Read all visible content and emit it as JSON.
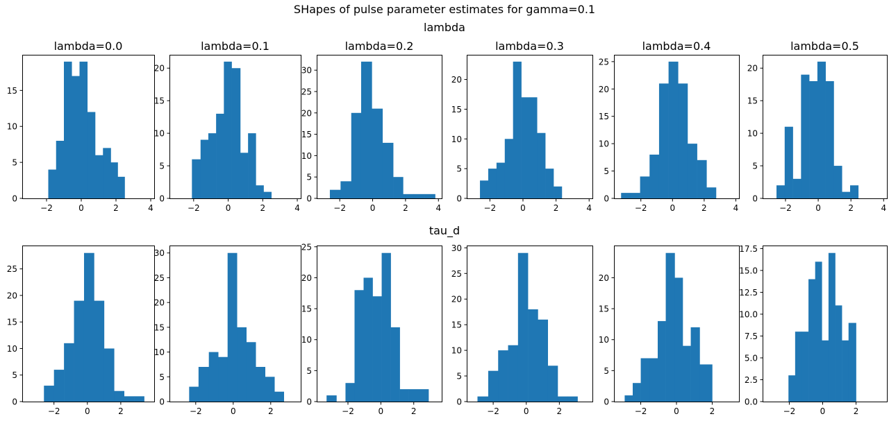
{
  "figure": {
    "suptitle": "SHapes of pulse parameter estimates for gamma=0.1",
    "row_titles": [
      "lambda",
      "tau_d"
    ],
    "bar_color": "#1f77b4"
  },
  "chart_data": [
    {
      "type": "bar",
      "row": 0,
      "col": 0,
      "title": "lambda=0.0",
      "bin_edges": [
        -1.9,
        -1.45,
        -1.0,
        -0.55,
        -0.1,
        0.35,
        0.8,
        1.25,
        1.7,
        2.1,
        2.5
      ],
      "values": [
        4,
        8,
        19,
        17,
        19,
        12,
        6,
        7,
        5,
        3
      ],
      "xlim": [
        -3.4,
        4.2
      ],
      "ylim": [
        0,
        19.95
      ],
      "xticks": [
        -2,
        0,
        2,
        4
      ],
      "xtick_labels": [
        "−2",
        "0",
        "2",
        "4"
      ],
      "yticks": [
        0,
        5,
        10,
        15
      ],
      "ytick_labels": [
        "0",
        "5",
        "10",
        "15"
      ]
    },
    {
      "type": "bar",
      "row": 0,
      "col": 1,
      "title": "lambda=0.1",
      "bin_edges": [
        -2.1,
        -1.6,
        -1.15,
        -0.7,
        -0.25,
        0.2,
        0.7,
        1.15,
        1.6,
        2.05,
        2.5
      ],
      "values": [
        6,
        9,
        10,
        13,
        21,
        20,
        7,
        10,
        2,
        1
      ],
      "xlim": [
        -3.4,
        4.2
      ],
      "ylim": [
        0,
        22.05
      ],
      "xticks": [
        -2,
        0,
        2,
        4
      ],
      "xtick_labels": [
        "−2",
        "0",
        "2",
        "4"
      ],
      "yticks": [
        0,
        5,
        10,
        15,
        20
      ],
      "ytick_labels": [
        "0",
        "5",
        "10",
        "15",
        "20"
      ]
    },
    {
      "type": "bar",
      "row": 0,
      "col": 2,
      "title": "lambda=0.2",
      "bin_edges": [
        -2.6,
        -1.95,
        -1.3,
        -0.7,
        -0.05,
        0.6,
        1.25,
        1.85,
        2.5,
        3.15,
        3.8
      ],
      "values": [
        2,
        4,
        20,
        32,
        21,
        13,
        5,
        1,
        1,
        1
      ],
      "xlim": [
        -3.4,
        4.2
      ],
      "ylim": [
        0,
        33.6
      ],
      "xticks": [
        -2,
        0,
        2,
        4
      ],
      "xtick_labels": [
        "−2",
        "0",
        "2",
        "4"
      ],
      "yticks": [
        0,
        5,
        10,
        15,
        20,
        25,
        30
      ],
      "ytick_labels": [
        "0",
        "5",
        "10",
        "15",
        "20",
        "25",
        "30"
      ]
    },
    {
      "type": "bar",
      "row": 0,
      "col": 3,
      "title": "lambda=0.3",
      "bin_edges": [
        -2.6,
        -2.1,
        -1.6,
        -1.1,
        -0.6,
        -0.1,
        0.4,
        0.85,
        1.35,
        1.85,
        2.35
      ],
      "values": [
        3,
        5,
        6,
        10,
        23,
        17,
        17,
        11,
        5,
        2
      ],
      "xlim": [
        -3.4,
        4.2
      ],
      "ylim": [
        0,
        24.15
      ],
      "xticks": [
        -2,
        0,
        2,
        4
      ],
      "xtick_labels": [
        "−2",
        "0",
        "2",
        "4"
      ],
      "yticks": [
        0,
        5,
        10,
        15,
        20
      ],
      "ytick_labels": [
        "0",
        "5",
        "10",
        "15",
        "20"
      ]
    },
    {
      "type": "bar",
      "row": 0,
      "col": 4,
      "title": "lambda=0.4",
      "bin_edges": [
        -3.25,
        -2.65,
        -2.05,
        -1.45,
        -0.85,
        -0.25,
        0.35,
        0.95,
        1.55,
        2.15,
        2.75
      ],
      "values": [
        1,
        1,
        4,
        8,
        21,
        25,
        21,
        10,
        7,
        2
      ],
      "xlim": [
        -3.7,
        4.2
      ],
      "ylim": [
        0,
        26.25
      ],
      "xticks": [
        -2,
        0,
        2,
        4
      ],
      "xtick_labels": [
        "−2",
        "0",
        "2",
        "4"
      ],
      "yticks": [
        0,
        5,
        10,
        15,
        20,
        25
      ],
      "ytick_labels": [
        "0",
        "5",
        "10",
        "15",
        "20",
        "25"
      ]
    },
    {
      "type": "bar",
      "row": 0,
      "col": 5,
      "title": "lambda=0.5",
      "bin_edges": [
        -2.55,
        -2.05,
        -1.55,
        -1.05,
        -0.55,
        -0.05,
        0.45,
        0.95,
        1.45,
        1.95,
        2.45
      ],
      "values": [
        2,
        11,
        3,
        19,
        18,
        21,
        18,
        5,
        1,
        2
      ],
      "xlim": [
        -3.4,
        4.2
      ],
      "ylim": [
        0,
        22.05
      ],
      "xticks": [
        -2,
        0,
        2,
        4
      ],
      "xtick_labels": [
        "−2",
        "0",
        "2",
        "4"
      ],
      "yticks": [
        0,
        5,
        10,
        15,
        20
      ],
      "ytick_labels": [
        "0",
        "5",
        "10",
        "15",
        "20"
      ]
    },
    {
      "type": "bar",
      "row": 1,
      "col": 0,
      "title": "",
      "bin_edges": [
        -2.6,
        -2.0,
        -1.4,
        -0.8,
        -0.2,
        0.4,
        1.0,
        1.6,
        2.2,
        2.8,
        3.4
      ],
      "values": [
        3,
        6,
        11,
        19,
        28,
        19,
        10,
        2,
        1,
        1
      ],
      "xlim": [
        -3.9,
        4.0
      ],
      "ylim": [
        0,
        29.4
      ],
      "xticks": [
        -2,
        0,
        2
      ],
      "xtick_labels": [
        "−2",
        "0",
        "2"
      ],
      "yticks": [
        0,
        5,
        10,
        15,
        20,
        25
      ],
      "ytick_labels": [
        "0",
        "5",
        "10",
        "15",
        "20",
        "25"
      ]
    },
    {
      "type": "bar",
      "row": 1,
      "col": 1,
      "title": "",
      "bin_edges": [
        -2.35,
        -1.85,
        -1.3,
        -0.8,
        -0.3,
        0.2,
        0.7,
        1.2,
        1.7,
        2.2,
        2.7
      ],
      "values": [
        3,
        7,
        10,
        9,
        30,
        15,
        12,
        7,
        5,
        2
      ],
      "xlim": [
        -3.4,
        3.6
      ],
      "ylim": [
        0,
        31.5
      ],
      "xticks": [
        -2,
        0,
        2
      ],
      "xtick_labels": [
        "−2",
        "0",
        "2"
      ],
      "yticks": [
        0,
        5,
        10,
        15,
        20,
        25,
        30
      ],
      "ytick_labels": [
        "0",
        "5",
        "10",
        "15",
        "20",
        "25",
        "30"
      ]
    },
    {
      "type": "bar",
      "row": 1,
      "col": 2,
      "title": "",
      "bin_edges": [
        -3.3,
        -2.7,
        -2.15,
        -1.6,
        -1.05,
        -0.5,
        0.05,
        0.6,
        1.15,
        1.7,
        2.9
      ],
      "values": [
        1,
        0,
        3,
        18,
        20,
        17,
        24,
        12,
        2,
        2
      ],
      "xlim": [
        -3.9,
        3.7
      ],
      "ylim": [
        0,
        25.2
      ],
      "xticks": [
        -2,
        0,
        2
      ],
      "xtick_labels": [
        "−2",
        "0",
        "2"
      ],
      "yticks": [
        0,
        5,
        10,
        15,
        20,
        25
      ],
      "ytick_labels": [
        "0",
        "5",
        "10",
        "15",
        "20",
        "25"
      ]
    },
    {
      "type": "bar",
      "row": 1,
      "col": 3,
      "title": "",
      "bin_edges": [
        -2.95,
        -2.3,
        -1.7,
        -1.1,
        -0.5,
        0.1,
        0.7,
        1.3,
        1.9,
        2.5,
        3.1
      ],
      "values": [
        1,
        6,
        10,
        11,
        29,
        18,
        16,
        7,
        1,
        1
      ],
      "xlim": [
        -3.6,
        4.0
      ],
      "ylim": [
        0,
        30.45
      ],
      "xticks": [
        -2,
        0,
        2
      ],
      "xtick_labels": [
        "−2",
        "0",
        "2"
      ],
      "yticks": [
        0,
        5,
        10,
        15,
        20,
        25,
        30
      ],
      "ytick_labels": [
        "0",
        "5",
        "10",
        "15",
        "20",
        "25",
        "30"
      ]
    },
    {
      "type": "bar",
      "row": 1,
      "col": 4,
      "title": "",
      "bin_edges": [
        -2.9,
        -2.45,
        -2.0,
        -1.5,
        -1.05,
        -0.6,
        -0.1,
        0.35,
        0.8,
        1.3,
        2.0
      ],
      "values": [
        1,
        3,
        7,
        7,
        13,
        24,
        20,
        9,
        12,
        6
      ],
      "xlim": [
        -3.5,
        3.5
      ],
      "ylim": [
        0,
        25.2
      ],
      "xticks": [
        -2,
        0,
        2
      ],
      "xtick_labels": [
        "−2",
        "0",
        "2"
      ],
      "yticks": [
        0,
        5,
        10,
        15,
        20
      ],
      "ytick_labels": [
        "0",
        "5",
        "10",
        "15",
        "20"
      ]
    },
    {
      "type": "bar",
      "row": 1,
      "col": 5,
      "title": "",
      "bin_edges": [
        -2.05,
        -1.65,
        -1.25,
        -0.85,
        -0.45,
        -0.05,
        0.35,
        0.75,
        1.15,
        1.55,
        2.0
      ],
      "values": [
        3,
        8,
        8,
        14,
        16,
        7,
        17,
        11,
        7,
        9
      ],
      "xlim": [
        -3.6,
        3.85
      ],
      "ylim": [
        0,
        17.85
      ],
      "xticks": [
        -2,
        0,
        2
      ],
      "xtick_labels": [
        "−2",
        "0",
        "2"
      ],
      "yticks": [
        0,
        2.5,
        5,
        7.5,
        10,
        12.5,
        15,
        17.5
      ],
      "ytick_labels": [
        "0.0",
        "2.5",
        "5.0",
        "7.5",
        "10.0",
        "12.5",
        "15.0",
        "17.5"
      ]
    }
  ]
}
